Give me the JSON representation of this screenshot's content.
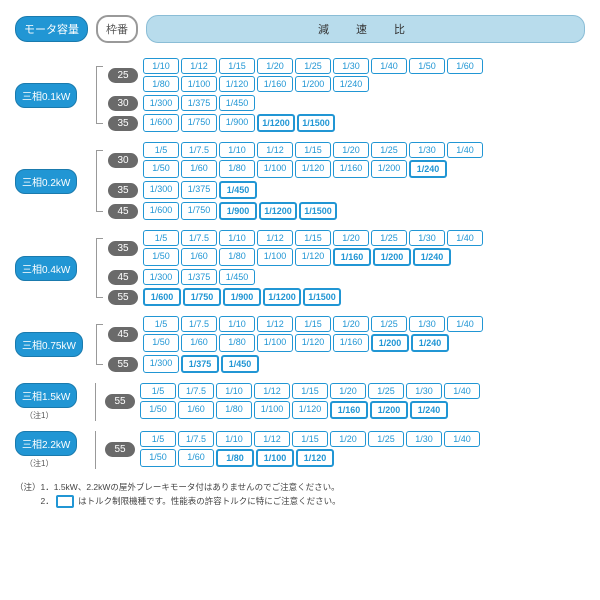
{
  "header": {
    "motor": "モータ容量",
    "frame": "枠番",
    "ratio": "減　速　比"
  },
  "colors": {
    "primary": "#2196d4",
    "gray": "#6a6a6a",
    "lightblue": "#b8dcec"
  },
  "groups": [
    {
      "motor": "三相0.1kW",
      "note": "",
      "frames": [
        {
          "num": "25",
          "rows": [
            [
              {
                "v": "1/10"
              },
              {
                "v": "1/12"
              },
              {
                "v": "1/15"
              },
              {
                "v": "1/20"
              },
              {
                "v": "1/25"
              },
              {
                "v": "1/30"
              },
              {
                "v": "1/40"
              },
              {
                "v": "1/50"
              },
              {
                "v": "1/60"
              }
            ],
            [
              {
                "v": "1/80"
              },
              {
                "v": "1/100"
              },
              {
                "v": "1/120"
              },
              {
                "v": "1/160"
              },
              {
                "v": "1/200"
              },
              {
                "v": "1/240"
              }
            ]
          ]
        },
        {
          "num": "30",
          "rows": [
            [
              {
                "v": "1/300"
              },
              {
                "v": "1/375"
              },
              {
                "v": "1/450"
              }
            ]
          ]
        },
        {
          "num": "35",
          "rows": [
            [
              {
                "v": "1/600"
              },
              {
                "v": "1/750"
              },
              {
                "v": "1/900"
              },
              {
                "v": "1/1200",
                "hl": true
              },
              {
                "v": "1/1500",
                "hl": true
              }
            ]
          ]
        }
      ]
    },
    {
      "motor": "三相0.2kW",
      "note": "",
      "frames": [
        {
          "num": "30",
          "rows": [
            [
              {
                "v": "1/5"
              },
              {
                "v": "1/7.5"
              },
              {
                "v": "1/10"
              },
              {
                "v": "1/12"
              },
              {
                "v": "1/15"
              },
              {
                "v": "1/20"
              },
              {
                "v": "1/25"
              },
              {
                "v": "1/30"
              },
              {
                "v": "1/40"
              }
            ],
            [
              {
                "v": "1/50"
              },
              {
                "v": "1/60"
              },
              {
                "v": "1/80"
              },
              {
                "v": "1/100"
              },
              {
                "v": "1/120"
              },
              {
                "v": "1/160"
              },
              {
                "v": "1/200"
              },
              {
                "v": "1/240",
                "hl": true
              }
            ]
          ]
        },
        {
          "num": "35",
          "rows": [
            [
              {
                "v": "1/300"
              },
              {
                "v": "1/375"
              },
              {
                "v": "1/450",
                "hl": true
              }
            ]
          ]
        },
        {
          "num": "45",
          "rows": [
            [
              {
                "v": "1/600"
              },
              {
                "v": "1/750"
              },
              {
                "v": "1/900",
                "hl": true
              },
              {
                "v": "1/1200",
                "hl": true
              },
              {
                "v": "1/1500",
                "hl": true
              }
            ]
          ]
        }
      ]
    },
    {
      "motor": "三相0.4kW",
      "note": "",
      "frames": [
        {
          "num": "35",
          "rows": [
            [
              {
                "v": "1/5"
              },
              {
                "v": "1/7.5"
              },
              {
                "v": "1/10"
              },
              {
                "v": "1/12"
              },
              {
                "v": "1/15"
              },
              {
                "v": "1/20"
              },
              {
                "v": "1/25"
              },
              {
                "v": "1/30"
              },
              {
                "v": "1/40"
              }
            ],
            [
              {
                "v": "1/50"
              },
              {
                "v": "1/60"
              },
              {
                "v": "1/80"
              },
              {
                "v": "1/100"
              },
              {
                "v": "1/120"
              },
              {
                "v": "1/160",
                "hl": true
              },
              {
                "v": "1/200",
                "hl": true
              },
              {
                "v": "1/240",
                "hl": true
              }
            ]
          ]
        },
        {
          "num": "45",
          "rows": [
            [
              {
                "v": "1/300"
              },
              {
                "v": "1/375"
              },
              {
                "v": "1/450"
              }
            ]
          ]
        },
        {
          "num": "55",
          "rows": [
            [
              {
                "v": "1/600",
                "hl": true
              },
              {
                "v": "1/750",
                "hl": true
              },
              {
                "v": "1/900",
                "hl": true
              },
              {
                "v": "1/1200",
                "hl": true
              },
              {
                "v": "1/1500",
                "hl": true
              }
            ]
          ]
        }
      ]
    },
    {
      "motor": "三相0.75kW",
      "note": "",
      "frames": [
        {
          "num": "45",
          "rows": [
            [
              {
                "v": "1/5"
              },
              {
                "v": "1/7.5"
              },
              {
                "v": "1/10"
              },
              {
                "v": "1/12"
              },
              {
                "v": "1/15"
              },
              {
                "v": "1/20"
              },
              {
                "v": "1/25"
              },
              {
                "v": "1/30"
              },
              {
                "v": "1/40"
              }
            ],
            [
              {
                "v": "1/50"
              },
              {
                "v": "1/60"
              },
              {
                "v": "1/80"
              },
              {
                "v": "1/100"
              },
              {
                "v": "1/120"
              },
              {
                "v": "1/160"
              },
              {
                "v": "1/200",
                "hl": true
              },
              {
                "v": "1/240",
                "hl": true
              }
            ]
          ]
        },
        {
          "num": "55",
          "rows": [
            [
              {
                "v": "1/300"
              },
              {
                "v": "1/375",
                "hl": true
              },
              {
                "v": "1/450",
                "hl": true
              }
            ]
          ]
        }
      ]
    },
    {
      "motor": "三相1.5kW",
      "note": "（注1）",
      "frames": [
        {
          "num": "55",
          "rows": [
            [
              {
                "v": "1/5"
              },
              {
                "v": "1/7.5"
              },
              {
                "v": "1/10"
              },
              {
                "v": "1/12"
              },
              {
                "v": "1/15"
              },
              {
                "v": "1/20"
              },
              {
                "v": "1/25"
              },
              {
                "v": "1/30"
              },
              {
                "v": "1/40"
              }
            ],
            [
              {
                "v": "1/50"
              },
              {
                "v": "1/60"
              },
              {
                "v": "1/80"
              },
              {
                "v": "1/100"
              },
              {
                "v": "1/120"
              },
              {
                "v": "1/160",
                "hl": true
              },
              {
                "v": "1/200",
                "hl": true
              },
              {
                "v": "1/240",
                "hl": true
              }
            ]
          ]
        }
      ]
    },
    {
      "motor": "三相2.2kW",
      "note": "（注1）",
      "frames": [
        {
          "num": "55",
          "rows": [
            [
              {
                "v": "1/5"
              },
              {
                "v": "1/7.5"
              },
              {
                "v": "1/10"
              },
              {
                "v": "1/12"
              },
              {
                "v": "1/15"
              },
              {
                "v": "1/20"
              },
              {
                "v": "1/25"
              },
              {
                "v": "1/30"
              },
              {
                "v": "1/40"
              }
            ],
            [
              {
                "v": "1/50"
              },
              {
                "v": "1/60"
              },
              {
                "v": "1/80",
                "hl": true
              },
              {
                "v": "1/100",
                "hl": true
              },
              {
                "v": "1/120",
                "hl": true
              }
            ]
          ]
        }
      ]
    }
  ],
  "footer": {
    "line1": "（注）1．1.5kW、2.2kWの屋外ブレーキモータ付はありませんのでご注意ください。",
    "line2_pre": "　　　2．",
    "line2_post": " はトルク制限機種です。性能表の許容トルクに特にご注意ください。"
  }
}
